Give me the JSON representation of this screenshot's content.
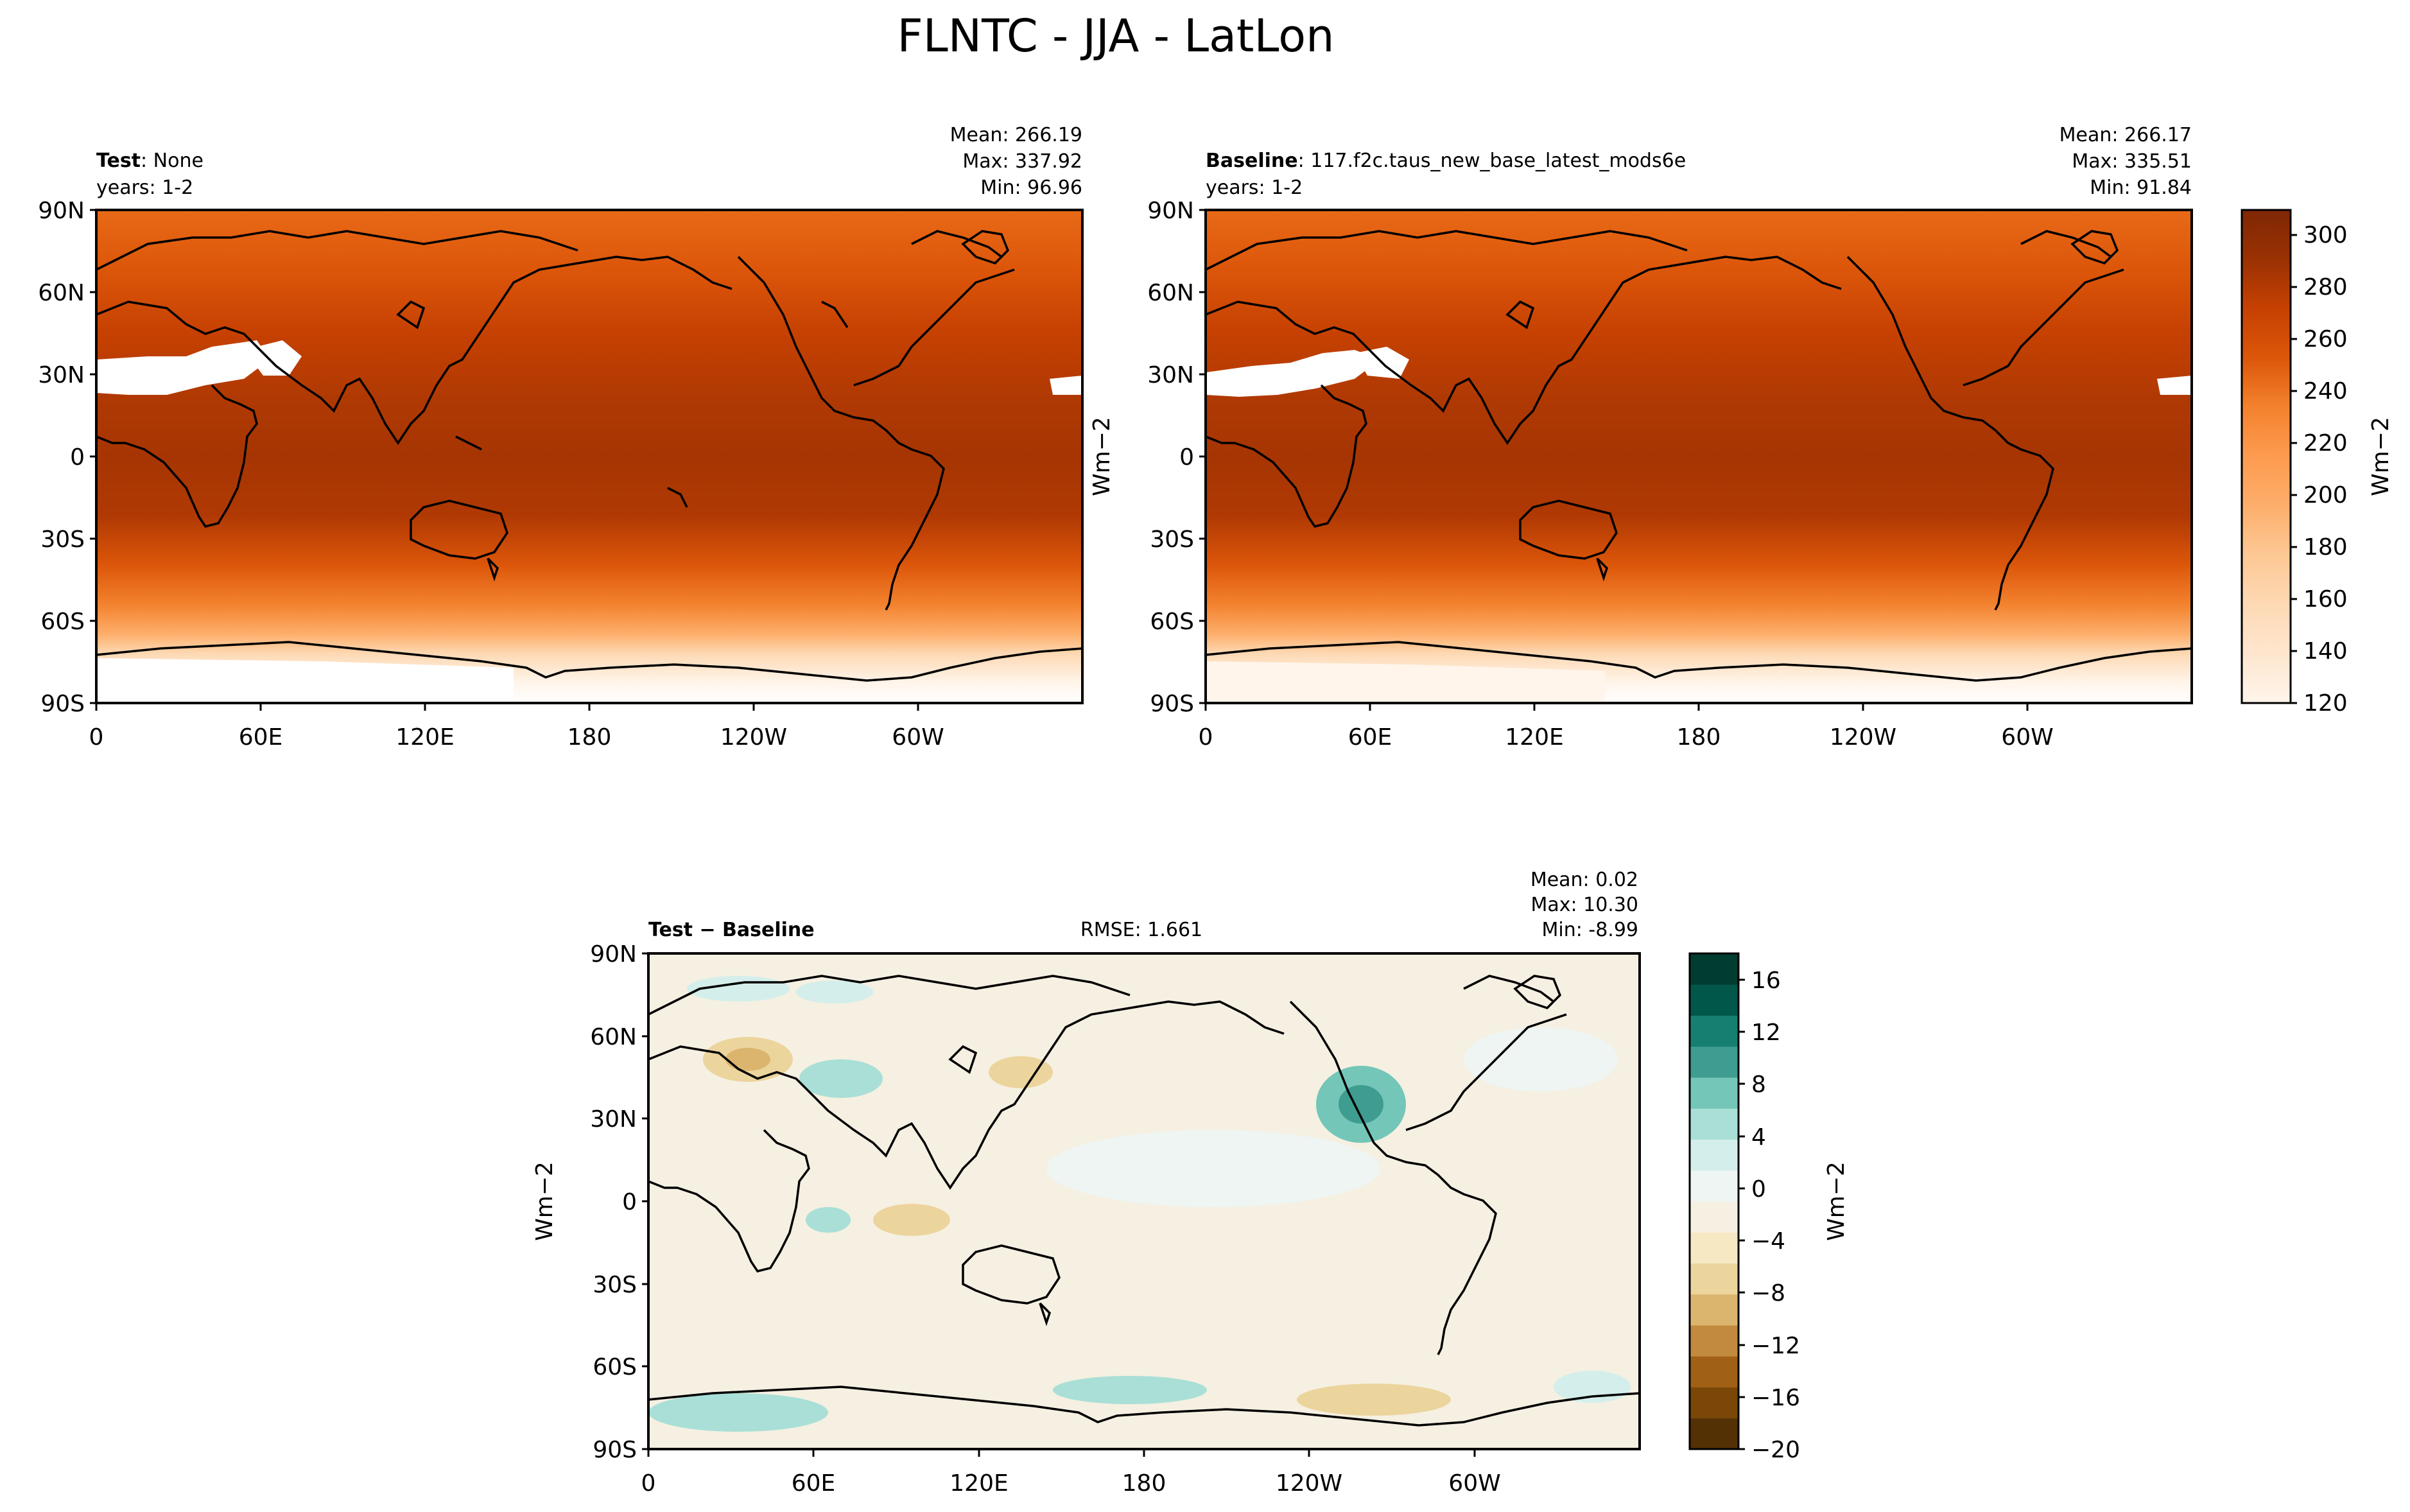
{
  "figure": {
    "title": "FLNTC - JJA - LatLon"
  },
  "chart_data": [
    {
      "type": "heatmap",
      "panel": "test",
      "label_bold": "Test",
      "label_text": ": None",
      "years": "years: 1-2",
      "stats": [
        "Mean: 266.19",
        "Max: 337.92",
        "Min: 96.96"
      ],
      "x_ticks": [
        "0",
        "60E",
        "120E",
        "180",
        "120W",
        "60W"
      ],
      "y_ticks": [
        "90N",
        "60N",
        "30N",
        "0",
        "30S",
        "60S",
        "90S"
      ],
      "x_range": [
        0,
        360
      ],
      "y_range": [
        -90,
        90
      ],
      "ylabel": "",
      "colormap": "Oranges",
      "zlim": [
        120,
        310
      ]
    },
    {
      "type": "heatmap",
      "panel": "baseline",
      "label_bold": "Baseline",
      "label_text": ": 117.f2c.taus_new_base_latest_mods6e",
      "years": "years: 1-2",
      "stats": [
        "Mean: 266.17",
        "Max: 335.51",
        "Min: 91.84"
      ],
      "x_ticks": [
        "0",
        "60E",
        "120E",
        "180",
        "120W",
        "60W"
      ],
      "y_ticks": [
        "90N",
        "60N",
        "30N",
        "0",
        "30S",
        "60S",
        "90S"
      ],
      "x_range": [
        0,
        360
      ],
      "y_range": [
        -90,
        90
      ],
      "ylabel": "Wm−2",
      "colormap": "Oranges",
      "zlim": [
        120,
        310
      ],
      "colorbar": {
        "ticks": [
          "120",
          "140",
          "160",
          "180",
          "200",
          "220",
          "240",
          "260",
          "280",
          "300"
        ],
        "label": "Wm−2"
      }
    },
    {
      "type": "heatmap",
      "panel": "difference",
      "label_bold": "Test − Baseline",
      "rmse": "RMSE: 1.661",
      "stats": [
        "Mean:  0.02",
        "Max: 10.30",
        "Min: -8.99"
      ],
      "x_ticks": [
        "0",
        "60E",
        "120E",
        "180",
        "120W",
        "60W"
      ],
      "y_ticks": [
        "90N",
        "60N",
        "30N",
        "0",
        "30S",
        "60S",
        "90S"
      ],
      "x_range": [
        0,
        360
      ],
      "y_range": [
        -90,
        90
      ],
      "ylabel": "Wm−2",
      "colormap": "BrBG",
      "zlim": [
        -20,
        18
      ],
      "colorbar": {
        "ticks": [
          "−20",
          "−16",
          "−12",
          "−8",
          "−4",
          "0",
          "4",
          "8",
          "12",
          "16"
        ],
        "label": "Wm−2"
      }
    }
  ],
  "colors": {
    "orange_scale": [
      "#fff5eb",
      "#fee6ce",
      "#fdd9b4",
      "#fdc895",
      "#fdae6b",
      "#fd9b50",
      "#f3822e",
      "#e86a17",
      "#dc560a",
      "#c64102",
      "#b03903",
      "#9a3103",
      "#7f2704"
    ],
    "brbg_scale": [
      "#543005",
      "#7a4707",
      "#a06016",
      "#c28a3e",
      "#dbb56e",
      "#ecd49d",
      "#f6e8c3",
      "#f5f0e2",
      "#eef5f3",
      "#d4eeeb",
      "#a9dfd6",
      "#74c6b8",
      "#3f9c90",
      "#167f72",
      "#00574a",
      "#003c30"
    ]
  }
}
